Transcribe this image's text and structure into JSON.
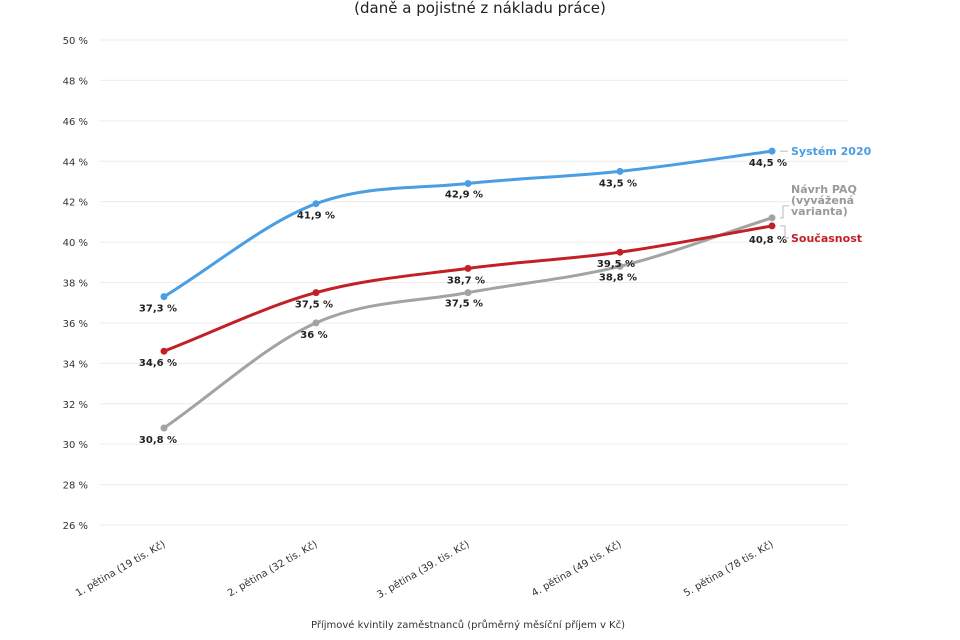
{
  "chart_data": {
    "type": "line",
    "subtitle": "(daně a pojistné z nákladu práce)",
    "xlabel": "Příjmové kvintily zaměstnanců (průměrný měsíční příjem v Kč)",
    "ylabel": "",
    "ylim": [
      26,
      50
    ],
    "y_ticks": [
      "26 %",
      "28 %",
      "30 %",
      "32 %",
      "34 %",
      "36 %",
      "38 %",
      "40 %",
      "42 %",
      "44 %",
      "46 %",
      "48 %",
      "50 %"
    ],
    "grid": true,
    "categories": [
      "1. pětina (19 tis. Kč)",
      "2. pětina (32 tis. Kč)",
      "3. pětina (39. tis. Kč)",
      "4. pětina (49 tis. Kč)",
      "5. pětina (78 tis. Kč)"
    ],
    "series": [
      {
        "name": "Systém 2020",
        "color": "#4a9ee3",
        "values": [
          37.3,
          41.9,
          42.9,
          43.5,
          44.5
        ],
        "labels": [
          "37,3 %",
          "41,9 %",
          "42,9 %",
          "43,5 %",
          "44,5 %"
        ]
      },
      {
        "name": "Současnost",
        "color": "#c32026",
        "values": [
          34.6,
          37.5,
          38.7,
          39.5,
          40.8
        ],
        "labels": [
          "34,6 %",
          "37,5 %",
          "38,7 %",
          "39,5 %",
          "40,8 %"
        ]
      },
      {
        "name": "Návrh PAQ (vyvážená varianta)",
        "name_lines": [
          "Návrh PAQ",
          "(vyvážená",
          "varianta)"
        ],
        "color": "#a3a3a3",
        "values": [
          30.8,
          36.0,
          37.5,
          38.8,
          41.2
        ],
        "labels": [
          "30,8 %",
          "36 %",
          "37,5 %",
          "38,8 %",
          ""
        ]
      }
    ]
  }
}
